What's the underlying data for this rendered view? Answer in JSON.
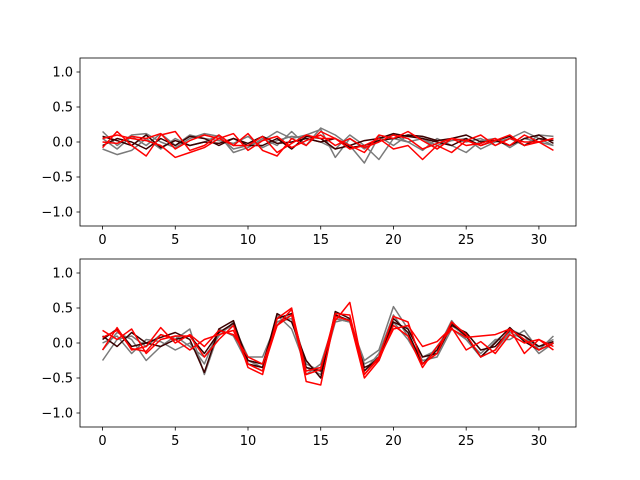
{
  "chart_data": [
    {
      "type": "line",
      "x": [
        0,
        1,
        2,
        3,
        4,
        5,
        6,
        7,
        8,
        9,
        10,
        11,
        12,
        13,
        14,
        15,
        16,
        17,
        18,
        19,
        20,
        21,
        22,
        23,
        24,
        25,
        26,
        27,
        28,
        29,
        30,
        31
      ],
      "xticks": [
        0,
        5,
        10,
        15,
        20,
        25,
        30
      ],
      "xlim": [
        -1.55,
        32.55
      ],
      "ylim": [
        -1.2,
        1.2
      ],
      "yticks": [
        -1.0,
        -0.5,
        0.0,
        0.5,
        1.0
      ],
      "ytick_labels": [
        "−1.0",
        "−0.5",
        "0.0",
        "0.5",
        "1.0"
      ],
      "title": "",
      "xlabel": "",
      "ylabel": "",
      "series": [
        {
          "color": "#7a7a7a",
          "values": [
            0.15,
            -0.05,
            0.1,
            0.12,
            0.0,
            -0.08,
            0.05,
            0.12,
            0.08,
            -0.1,
            -0.05,
            0.02,
            0.15,
            0.05,
            0.1,
            0.18,
            -0.22,
            0.05,
            -0.1,
            0.05,
            0.1,
            0.0,
            0.05,
            -0.05,
            0.02,
            0.05,
            -0.1,
            0.0,
            0.05,
            -0.05,
            0.1,
            0.08
          ]
        },
        {
          "color": "#7a7a7a",
          "values": [
            -0.1,
            -0.18,
            -0.12,
            0.05,
            -0.1,
            0.05,
            -0.05,
            0.0,
            0.1,
            -0.15,
            -0.08,
            0.05,
            -0.05,
            0.15,
            -0.05,
            0.2,
            0.1,
            -0.05,
            -0.3,
            0.08,
            -0.05,
            0.1,
            0.05,
            -0.1,
            0.05,
            0.0,
            0.05,
            -0.05,
            0.05,
            0.15,
            0.05,
            -0.05
          ]
        },
        {
          "color": "#7a7a7a",
          "values": [
            0.05,
            -0.1,
            0.08,
            -0.05,
            0.12,
            -0.05,
            0.1,
            0.05,
            0.02,
            -0.02,
            0.08,
            -0.08,
            0.02,
            0.08,
            0.05,
            0.0,
            -0.1,
            0.1,
            -0.05,
            -0.25,
            0.05,
            0.0,
            -0.12,
            0.05,
            -0.05,
            -0.15,
            0.02,
            0.05,
            -0.08,
            0.05,
            0.0,
            -0.05
          ]
        },
        {
          "color": "#3a0000",
          "values": [
            -0.05,
            0.05,
            0.0,
            -0.1,
            0.05,
            -0.05,
            0.08,
            0.05,
            -0.05,
            0.05,
            -0.05,
            -0.05,
            0.05,
            -0.1,
            0.08,
            0.05,
            -0.1,
            -0.05,
            0.02,
            0.05,
            0.12,
            0.08,
            0.05,
            0.0,
            -0.05,
            0.05,
            -0.05,
            0.02,
            0.08,
            -0.05,
            0.05,
            0.02
          ]
        },
        {
          "color": "#3a0000",
          "values": [
            0.08,
            0.02,
            -0.05,
            0.1,
            -0.08,
            0.02,
            -0.05,
            0.0,
            -0.02,
            0.05,
            -0.02,
            0.08,
            -0.02,
            0.0,
            0.05,
            0.0,
            0.05,
            -0.08,
            -0.05,
            0.02,
            0.05,
            0.1,
            0.08,
            0.02,
            0.05,
            0.1,
            0.0,
            0.02,
            -0.05,
            0.05,
            0.1,
            -0.02
          ]
        },
        {
          "color": "#ff0000",
          "values": [
            -0.08,
            0.15,
            -0.05,
            -0.2,
            0.1,
            0.15,
            -0.12,
            -0.05,
            0.1,
            -0.05,
            0.12,
            -0.12,
            -0.2,
            0.05,
            -0.05,
            0.15,
            0.05,
            -0.05,
            -0.15,
            0.1,
            0.05,
            0.15,
            0.02,
            -0.1,
            0.05,
            -0.05,
            -0.02,
            0.05,
            -0.05,
            0.1,
            0.0,
            0.05
          ]
        },
        {
          "color": "#ff0000",
          "values": [
            0.05,
            0.1,
            0.05,
            0.02,
            -0.05,
            -0.22,
            -0.15,
            -0.08,
            0.05,
            -0.05,
            -0.05,
            0.08,
            -0.15,
            -0.02,
            0.1,
            0.05,
            0.05,
            -0.1,
            -0.05,
            0.05,
            -0.1,
            -0.05,
            -0.25,
            -0.05,
            -0.15,
            0.02,
            0.1,
            -0.05,
            0.05,
            0.0,
            0.0,
            -0.12
          ]
        },
        {
          "color": "#ff0000",
          "values": [
            0.0,
            -0.02,
            0.08,
            0.05,
            0.12,
            -0.1,
            0.02,
            0.1,
            0.05,
            0.12,
            -0.12,
            0.02,
            0.08,
            -0.08,
            0.02,
            0.1,
            -0.05,
            0.05,
            -0.08,
            0.0,
            0.1,
            0.05,
            -0.1,
            -0.02,
            0.05,
            0.02,
            -0.05,
            0.02,
            0.1,
            -0.05,
            0.0,
            0.05
          ]
        }
      ]
    },
    {
      "type": "line",
      "x": [
        0,
        1,
        2,
        3,
        4,
        5,
        6,
        7,
        8,
        9,
        10,
        11,
        12,
        13,
        14,
        15,
        16,
        17,
        18,
        19,
        20,
        21,
        22,
        23,
        24,
        25,
        26,
        27,
        28,
        29,
        30,
        31
      ],
      "xticks": [
        0,
        5,
        10,
        15,
        20,
        25,
        30
      ],
      "xlim": [
        -1.55,
        32.55
      ],
      "ylim": [
        -1.2,
        1.2
      ],
      "yticks": [
        -1.0,
        -0.5,
        0.0,
        0.5,
        1.0
      ],
      "ytick_labels": [
        "−1.0",
        "−0.5",
        "0.0",
        "0.5",
        "1.0"
      ],
      "title": "",
      "xlabel": "",
      "ylabel": "",
      "series": [
        {
          "color": "#7a7a7a",
          "values": [
            -0.25,
            0.05,
            0.1,
            -0.05,
            0.12,
            0.05,
            0.2,
            -0.45,
            0.15,
            0.25,
            -0.2,
            -0.2,
            0.3,
            0.35,
            -0.45,
            -0.3,
            0.35,
            0.3,
            -0.25,
            -0.1,
            0.52,
            0.2,
            -0.2,
            -0.1,
            0.32,
            0.05,
            -0.15,
            0.05,
            0.05,
            0.18,
            -0.1,
            0.1
          ]
        },
        {
          "color": "#7a7a7a",
          "values": [
            0.0,
            0.1,
            -0.15,
            0.05,
            0.02,
            -0.1,
            0.0,
            -0.3,
            0.2,
            0.1,
            -0.3,
            -0.4,
            0.4,
            0.2,
            -0.35,
            -0.45,
            0.3,
            0.35,
            -0.3,
            -0.2,
            0.3,
            0.05,
            -0.3,
            -0.05,
            0.25,
            0.1,
            -0.2,
            -0.1,
            0.15,
            0.05,
            -0.05,
            0.05
          ]
        },
        {
          "color": "#7a7a7a",
          "values": [
            -0.1,
            0.15,
            0.05,
            -0.25,
            -0.05,
            0.1,
            -0.05,
            -0.2,
            0.1,
            0.3,
            -0.25,
            -0.35,
            0.3,
            0.4,
            -0.3,
            -0.4,
            0.35,
            0.3,
            -0.4,
            -0.15,
            0.4,
            0.1,
            -0.25,
            -0.2,
            0.2,
            0.05,
            -0.2,
            0.02,
            0.2,
            0.1,
            -0.15,
            0.0
          ]
        },
        {
          "color": "#3a0000",
          "values": [
            0.05,
            0.2,
            -0.05,
            0.0,
            0.08,
            0.15,
            0.05,
            -0.42,
            0.2,
            0.32,
            -0.3,
            -0.35,
            0.42,
            0.3,
            -0.25,
            -0.5,
            0.45,
            0.35,
            -0.4,
            -0.2,
            0.35,
            0.15,
            -0.3,
            -0.1,
            0.28,
            0.1,
            -0.2,
            0.0,
            0.22,
            0.02,
            -0.1,
            0.0
          ]
        },
        {
          "color": "#3a0000",
          "values": [
            0.1,
            -0.05,
            0.15,
            0.0,
            -0.05,
            0.05,
            0.1,
            -0.15,
            0.15,
            0.28,
            -0.25,
            -0.3,
            0.35,
            0.42,
            -0.35,
            -0.4,
            0.4,
            0.32,
            -0.35,
            -0.25,
            0.3,
            0.2,
            -0.2,
            -0.15,
            0.25,
            0.15,
            -0.1,
            -0.05,
            0.18,
            0.1,
            -0.05,
            0.02
          ]
        },
        {
          "color": "#ff0000",
          "values": [
            0.18,
            0.05,
            0.2,
            -0.15,
            0.05,
            0.1,
            0.1,
            -0.2,
            0.05,
            0.25,
            -0.35,
            -0.45,
            0.35,
            0.5,
            -0.55,
            -0.6,
            0.38,
            0.32,
            -0.5,
            -0.25,
            0.25,
            0.1,
            -0.35,
            -0.05,
            0.2,
            0.08,
            0.1,
            0.12,
            0.2,
            0.05,
            -0.1,
            0.0
          ]
        },
        {
          "color": "#ff0000",
          "values": [
            -0.1,
            0.22,
            -0.1,
            -0.05,
            0.22,
            0.0,
            0.12,
            -0.05,
            0.18,
            0.12,
            -0.2,
            -0.3,
            0.25,
            0.48,
            -0.4,
            -0.35,
            0.32,
            0.58,
            -0.45,
            -0.22,
            0.2,
            0.25,
            -0.05,
            0.02,
            0.22,
            -0.1,
            0.02,
            -0.15,
            0.12,
            0.0,
            0.05,
            -0.1
          ]
        },
        {
          "color": "#ff0000",
          "values": [
            0.08,
            0.18,
            -0.08,
            -0.12,
            0.12,
            0.05,
            -0.1,
            0.05,
            0.12,
            0.18,
            -0.3,
            -0.4,
            0.25,
            0.4,
            -0.45,
            -0.38,
            0.42,
            0.4,
            -0.45,
            -0.2,
            0.38,
            0.3,
            -0.3,
            -0.15,
            0.3,
            0.12,
            -0.2,
            -0.1,
            0.2,
            -0.15,
            0.05,
            -0.05
          ]
        }
      ]
    }
  ]
}
